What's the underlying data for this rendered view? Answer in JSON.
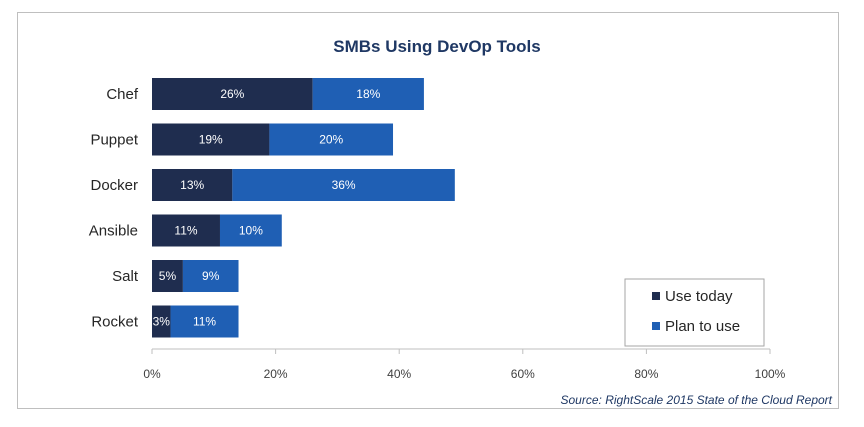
{
  "chart_data": {
    "type": "bar",
    "orientation": "horizontal",
    "stacked": true,
    "title": "SMBs Using DevOp Tools",
    "categories": [
      "Chef",
      "Puppet",
      "Docker",
      "Ansible",
      "Salt",
      "Rocket"
    ],
    "series": [
      {
        "name": "Use today",
        "values": [
          26,
          19,
          13,
          11,
          5,
          3
        ],
        "color": "#1f2d4f"
      },
      {
        "name": "Plan to use",
        "values": [
          18,
          20,
          36,
          10,
          9,
          11
        ],
        "color": "#1f5fb4"
      }
    ],
    "value_labels": [
      [
        "26%",
        "19%",
        "13%",
        "11%",
        "5%",
        "3%"
      ],
      [
        "18%",
        "20%",
        "36%",
        "10%",
        "9%",
        "11%"
      ]
    ],
    "xlim": [
      0,
      100
    ],
    "xticks": [
      0,
      20,
      40,
      60,
      80,
      100
    ],
    "xtick_labels": [
      "0%",
      "20%",
      "40%",
      "60%",
      "80%",
      "100%"
    ],
    "xlabel": "",
    "ylabel": "",
    "grid": false,
    "legend_position": "bottom-right",
    "source": "Source: RightScale 2015 State of the Cloud Report"
  },
  "colors": {
    "title": "#1f3864",
    "axis": "#bfbfbf",
    "legend_border": "#a6a6a6"
  }
}
